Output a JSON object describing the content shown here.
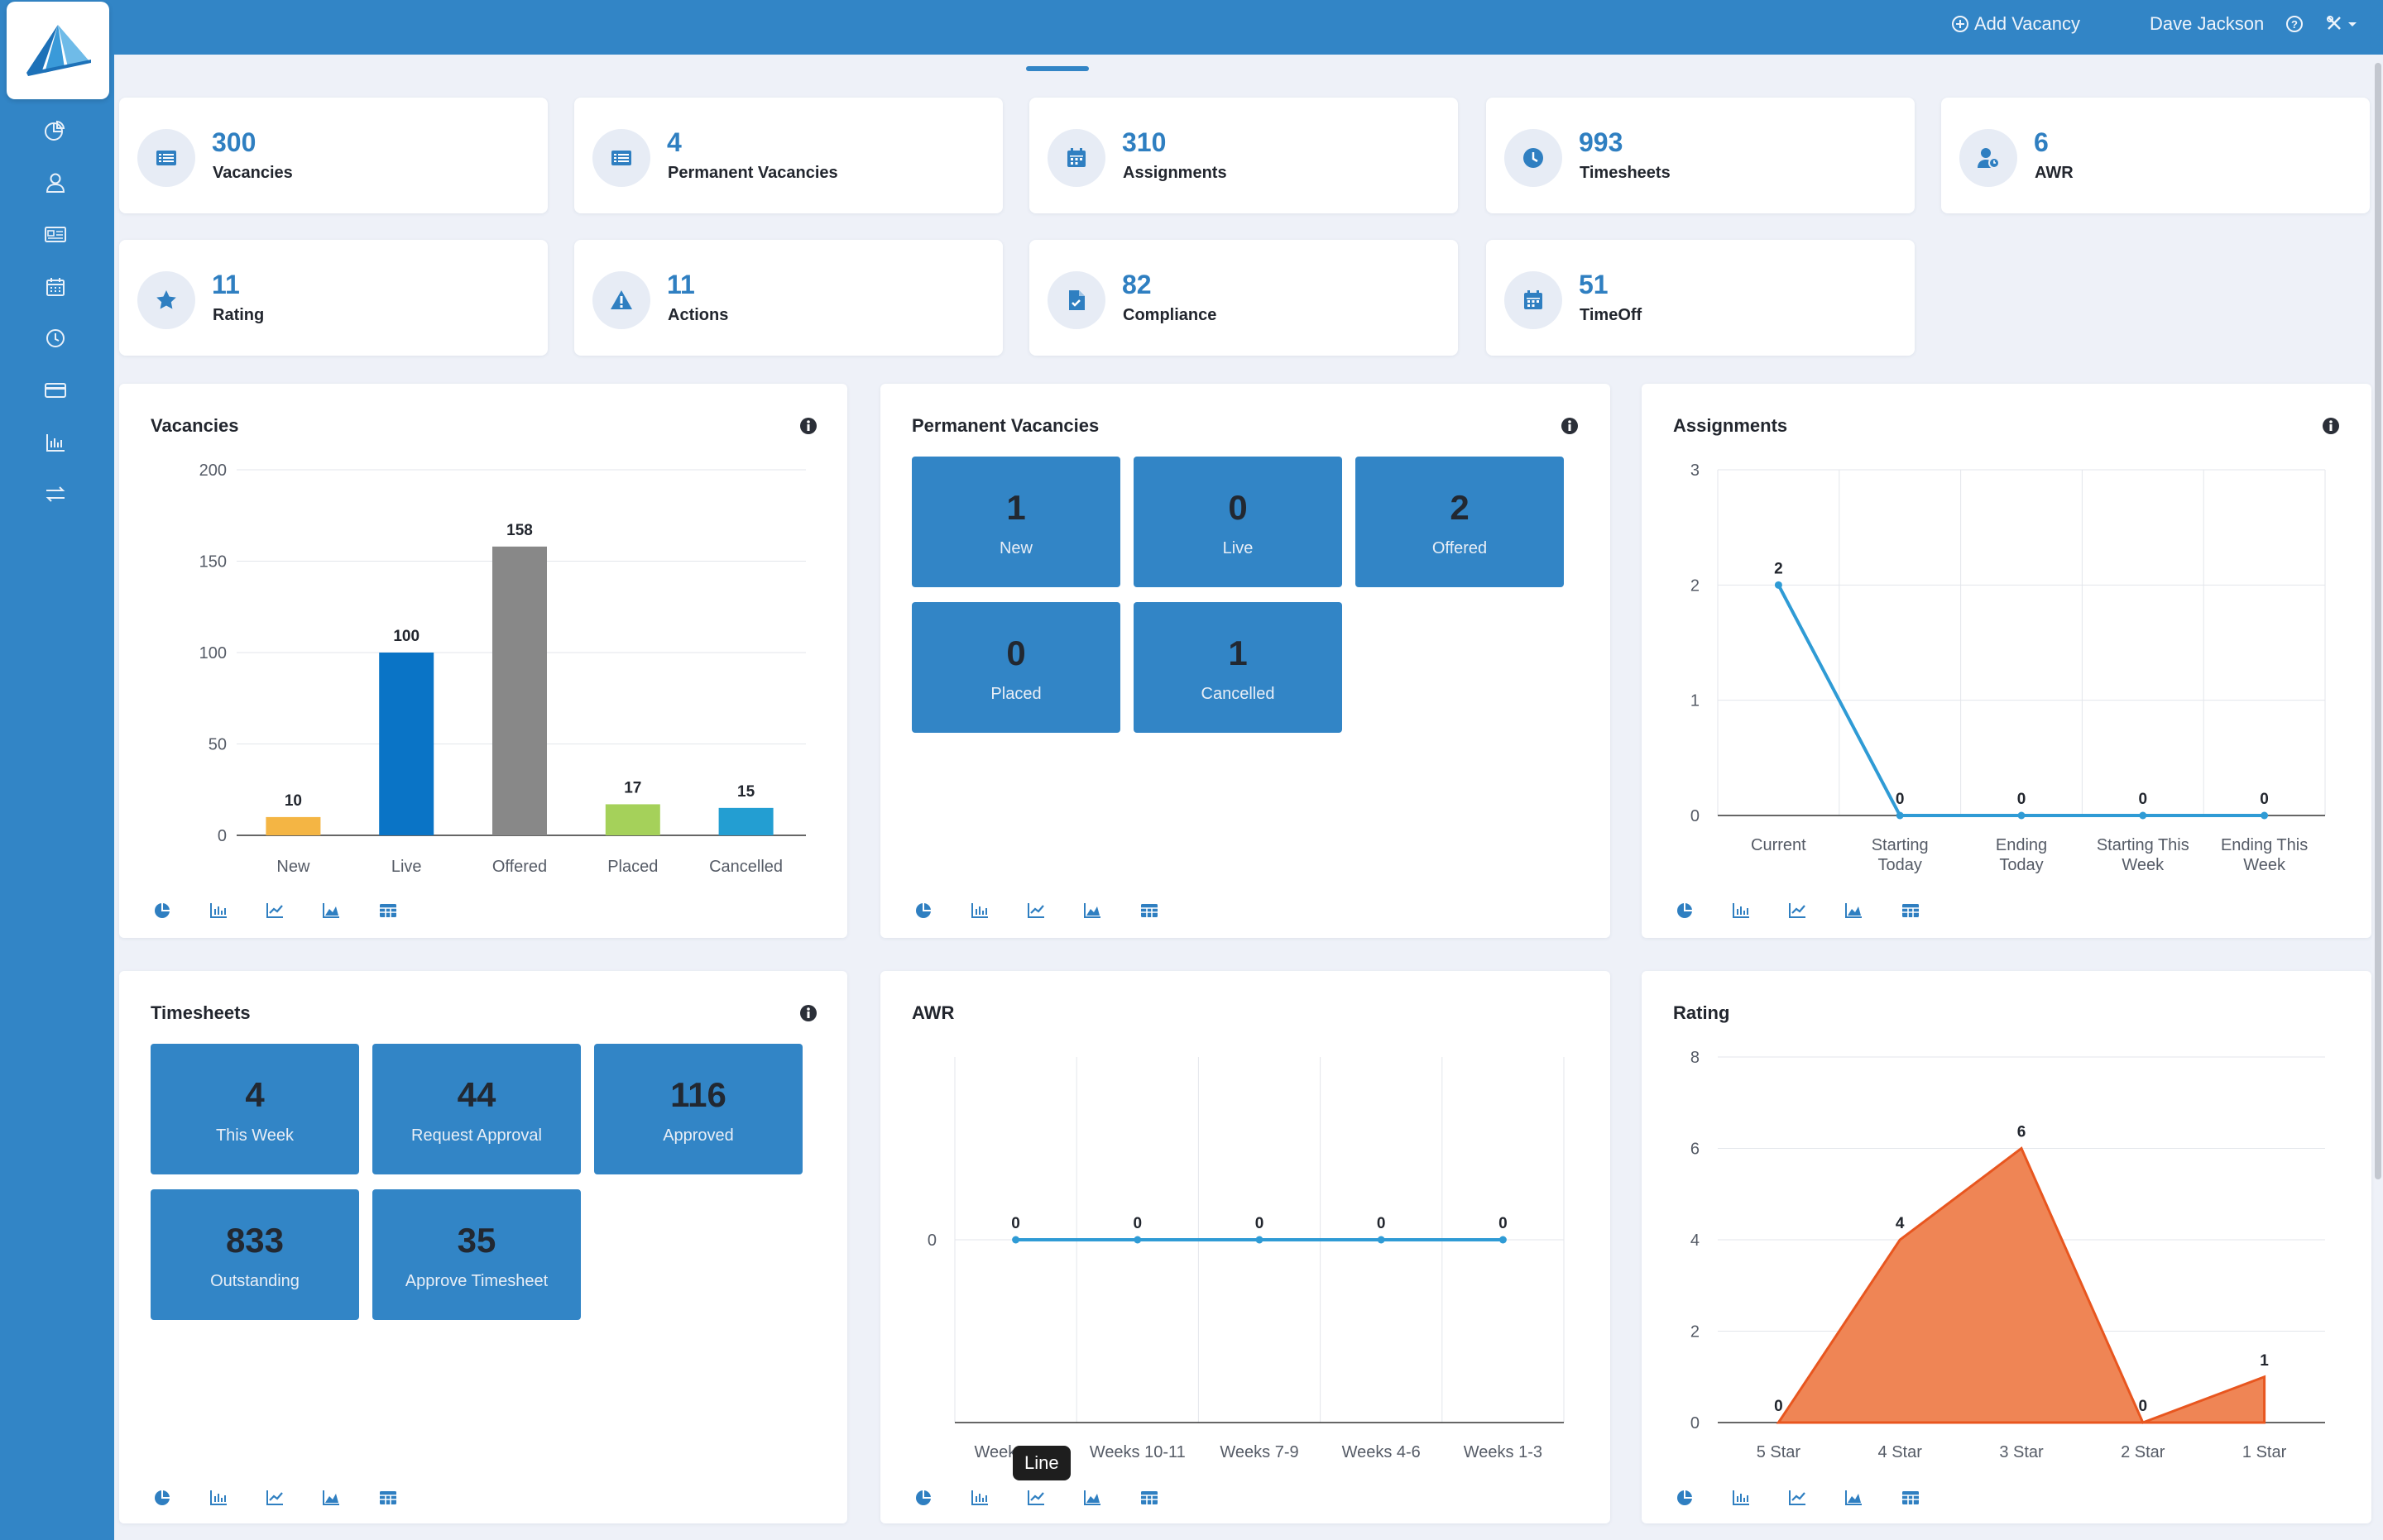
{
  "header": {
    "add_vacancy": "Add Vacancy",
    "user_name": "Dave Jackson"
  },
  "colors": {
    "brand": "#3285c6",
    "tile": "#3285c6",
    "stat_number": "#2f7fc1",
    "area_fill": "#ef8555",
    "area_stroke": "#e8561f",
    "line": "#2f9bd5"
  },
  "sidebar": {
    "items": [
      {
        "icon": "dashboard-chart-icon"
      },
      {
        "icon": "user-icon"
      },
      {
        "icon": "id-card-icon"
      },
      {
        "icon": "calendar-icon"
      },
      {
        "icon": "clock-icon"
      },
      {
        "icon": "credit-card-icon"
      },
      {
        "icon": "bar-chart-icon"
      },
      {
        "icon": "transfer-icon"
      }
    ]
  },
  "stats": [
    {
      "value": "300",
      "label": "Vacancies",
      "icon": "list-icon"
    },
    {
      "value": "4",
      "label": "Permanent Vacancies",
      "icon": "list-icon"
    },
    {
      "value": "310",
      "label": "Assignments",
      "icon": "calendar-icon"
    },
    {
      "value": "993",
      "label": "Timesheets",
      "icon": "clock-icon"
    },
    {
      "value": "6",
      "label": "AWR",
      "icon": "user-clock-icon"
    },
    {
      "value": "11",
      "label": "Rating",
      "icon": "star-icon"
    },
    {
      "value": "11",
      "label": "Actions",
      "icon": "warning-icon"
    },
    {
      "value": "82",
      "label": "Compliance",
      "icon": "document-check-icon"
    },
    {
      "value": "51",
      "label": "TimeOff",
      "icon": "calendar-icon"
    }
  ],
  "panels": {
    "vacancies": {
      "title": "Vacancies"
    },
    "permanent": {
      "title": "Permanent Vacancies",
      "tiles": [
        {
          "value": "1",
          "label": "New"
        },
        {
          "value": "0",
          "label": "Live"
        },
        {
          "value": "2",
          "label": "Offered"
        },
        {
          "value": "0",
          "label": "Placed"
        },
        {
          "value": "1",
          "label": "Cancelled"
        }
      ]
    },
    "assignments": {
      "title": "Assignments"
    },
    "timesheets": {
      "title": "Timesheets",
      "tiles": [
        {
          "value": "4",
          "label": "This Week"
        },
        {
          "value": "44",
          "label": "Request Approval"
        },
        {
          "value": "116",
          "label": "Approved"
        },
        {
          "value": "833",
          "label": "Outstanding"
        },
        {
          "value": "35",
          "label": "Approve Timesheet"
        }
      ]
    },
    "awr": {
      "title": "AWR",
      "tooltip": "Line"
    },
    "rating": {
      "title": "Rating"
    }
  },
  "toolbar_icons": [
    "pie-chart-icon",
    "bar-chart-icon",
    "line-chart-icon",
    "area-chart-icon",
    "table-icon"
  ],
  "chart_data": [
    {
      "type": "bar",
      "categories": [
        "New",
        "Live",
        "Offered",
        "Placed",
        "Cancelled"
      ],
      "values": [
        10,
        100,
        158,
        17,
        15
      ],
      "colors": [
        "#f4b544",
        "#0a74c6",
        "#888888",
        "#a5d15a",
        "#239ed2"
      ],
      "ylim": [
        0,
        200
      ],
      "yticks": [
        0,
        50,
        100,
        150,
        200
      ],
      "grid": true
    },
    {
      "type": "line",
      "categories": [
        "Current",
        "Starting Today",
        "Ending Today",
        "Starting This Week",
        "Ending This Week"
      ],
      "values": [
        2,
        0,
        0,
        0,
        0
      ],
      "ylim": [
        0,
        3
      ],
      "yticks": [
        0,
        1,
        2,
        3
      ],
      "grid": true
    },
    {
      "type": "line",
      "categories": [
        "Weeks 13+",
        "Weeks 10-11",
        "Weeks 7-9",
        "Weeks 4-6",
        "Weeks 1-3"
      ],
      "values": [
        0,
        0,
        0,
        0,
        0
      ],
      "yticks": [
        0
      ],
      "grid": true
    },
    {
      "type": "area",
      "categories": [
        "5 Star",
        "4 Star",
        "3 Star",
        "2 Star",
        "1 Star"
      ],
      "values": [
        0,
        4,
        6,
        0,
        1
      ],
      "ylim": [
        0,
        8
      ],
      "yticks": [
        0,
        2,
        4,
        6,
        8
      ],
      "grid": true
    }
  ]
}
